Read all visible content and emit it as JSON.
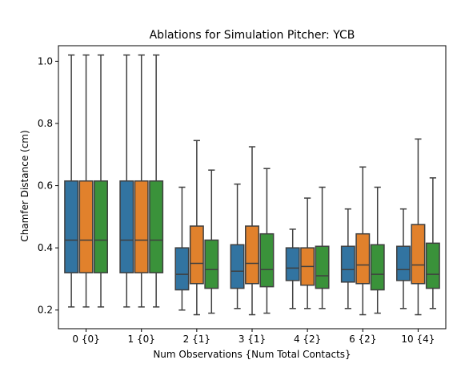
{
  "chart_data": {
    "type": "box",
    "title": "Ablations for Simulation Pitcher: YCB",
    "xlabel": "Num Observations {Num Total Contacts}",
    "ylabel": "Chamfer Distance (cm)",
    "ylim": [
      0.14,
      1.05
    ],
    "yticks": [
      0.2,
      0.4,
      0.6,
      0.8,
      1.0
    ],
    "ytick_labels": [
      "0.2",
      "0.4",
      "0.6",
      "0.8",
      "1.0"
    ],
    "categories": [
      "0 {0}",
      "1 {0}",
      "2 {1}",
      "3 {1}",
      "4 {2}",
      "6 {2}",
      "10 {4}"
    ],
    "legend": "none",
    "grid": false,
    "series": [
      {
        "color": "#3274a1",
        "boxes": [
          {
            "whislo": 0.21,
            "q1": 0.32,
            "med": 0.425,
            "q3": 0.615,
            "whishi": 1.02
          },
          {
            "whislo": 0.21,
            "q1": 0.32,
            "med": 0.425,
            "q3": 0.615,
            "whishi": 1.02
          },
          {
            "whislo": 0.2,
            "q1": 0.265,
            "med": 0.315,
            "q3": 0.4,
            "whishi": 0.595
          },
          {
            "whislo": 0.205,
            "q1": 0.27,
            "med": 0.325,
            "q3": 0.41,
            "whishi": 0.605
          },
          {
            "whislo": 0.205,
            "q1": 0.295,
            "med": 0.335,
            "q3": 0.4,
            "whishi": 0.46
          },
          {
            "whislo": 0.205,
            "q1": 0.29,
            "med": 0.33,
            "q3": 0.405,
            "whishi": 0.525
          },
          {
            "whislo": 0.205,
            "q1": 0.295,
            "med": 0.33,
            "q3": 0.405,
            "whishi": 0.525
          }
        ]
      },
      {
        "color": "#e1812c",
        "boxes": [
          {
            "whislo": 0.21,
            "q1": 0.32,
            "med": 0.425,
            "q3": 0.615,
            "whishi": 1.02
          },
          {
            "whislo": 0.21,
            "q1": 0.32,
            "med": 0.425,
            "q3": 0.615,
            "whishi": 1.02
          },
          {
            "whislo": 0.185,
            "q1": 0.285,
            "med": 0.35,
            "q3": 0.47,
            "whishi": 0.745
          },
          {
            "whislo": 0.185,
            "q1": 0.285,
            "med": 0.35,
            "q3": 0.47,
            "whishi": 0.725
          },
          {
            "whislo": 0.205,
            "q1": 0.28,
            "med": 0.34,
            "q3": 0.4,
            "whishi": 0.56
          },
          {
            "whislo": 0.185,
            "q1": 0.285,
            "med": 0.345,
            "q3": 0.445,
            "whishi": 0.66
          },
          {
            "whislo": 0.185,
            "q1": 0.285,
            "med": 0.345,
            "q3": 0.475,
            "whishi": 0.75
          }
        ]
      },
      {
        "color": "#3a923a",
        "boxes": [
          {
            "whislo": 0.21,
            "q1": 0.32,
            "med": 0.425,
            "q3": 0.615,
            "whishi": 1.02
          },
          {
            "whislo": 0.21,
            "q1": 0.32,
            "med": 0.425,
            "q3": 0.615,
            "whishi": 1.02
          },
          {
            "whislo": 0.19,
            "q1": 0.27,
            "med": 0.33,
            "q3": 0.425,
            "whishi": 0.65
          },
          {
            "whislo": 0.19,
            "q1": 0.275,
            "med": 0.33,
            "q3": 0.445,
            "whishi": 0.655
          },
          {
            "whislo": 0.205,
            "q1": 0.27,
            "med": 0.31,
            "q3": 0.405,
            "whishi": 0.595
          },
          {
            "whislo": 0.19,
            "q1": 0.265,
            "med": 0.315,
            "q3": 0.41,
            "whishi": 0.595
          },
          {
            "whislo": 0.205,
            "q1": 0.27,
            "med": 0.315,
            "q3": 0.415,
            "whishi": 0.625
          }
        ]
      }
    ]
  }
}
